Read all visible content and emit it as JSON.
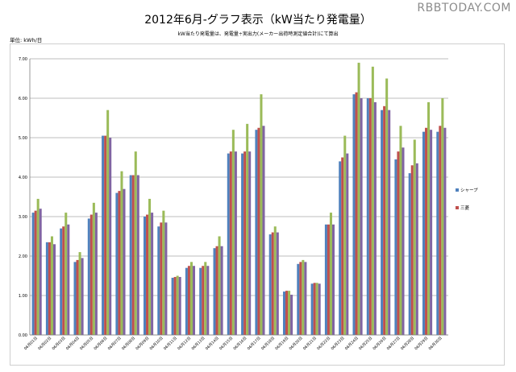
{
  "header": {
    "title": "2012年6月-グラフ表示（kW当たり発電量）",
    "subtitle": "kW当たり発電量は、発電量÷実出力(メーカー出荷時測定値合計)にて算出",
    "unit": "単位: kWh/日",
    "watermark": "RBBTODAY.COM"
  },
  "chart_data": {
    "type": "bar",
    "title": "2012年6月-グラフ表示（kW当たり発電量）",
    "ylim": [
      0,
      7
    ],
    "yticks": [
      "0.00",
      "1.00",
      "2.00",
      "3.00",
      "4.00",
      "5.00",
      "6.00",
      "7.00"
    ],
    "grid": true,
    "legend_position": "right",
    "categories": [
      "06月01日",
      "06月02日",
      "06月03日",
      "06月04日",
      "06月05日",
      "06月06日",
      "06月07日",
      "06月08日",
      "06月09日",
      "06月10日",
      "06月11日",
      "06月12日",
      "06月13日",
      "06月14日",
      "06月15日",
      "06月16日",
      "06月17日",
      "06月18日",
      "06月19日",
      "06月20日",
      "06月21日",
      "06月22日",
      "06月23日",
      "06月24日",
      "06月25日",
      "06月26日",
      "06月27日",
      "06月28日",
      "06月29日",
      "06月30日"
    ],
    "series": [
      {
        "name": "シャープ",
        "color": "#4f81bd",
        "values": [
          3.1,
          2.35,
          2.7,
          1.85,
          2.95,
          5.05,
          3.6,
          4.05,
          3.0,
          2.75,
          1.45,
          1.7,
          1.7,
          2.2,
          4.6,
          4.6,
          5.2,
          2.55,
          1.1,
          1.8,
          1.3,
          2.8,
          4.4,
          6.1,
          6.0,
          5.7,
          4.45,
          4.1,
          5.15,
          5.15
        ]
      },
      {
        "name": "三菱",
        "color": "#c0504d",
        "values": [
          3.15,
          2.35,
          2.75,
          1.9,
          3.05,
          5.05,
          3.65,
          4.05,
          3.05,
          2.85,
          1.47,
          1.75,
          1.75,
          2.25,
          4.65,
          4.65,
          5.25,
          2.6,
          1.12,
          1.85,
          1.32,
          2.8,
          4.5,
          6.15,
          6.0,
          5.8,
          4.65,
          4.3,
          5.25,
          5.3
        ]
      },
      {
        "name": "",
        "color": "#9bbb59",
        "values": [
          3.45,
          2.5,
          3.1,
          2.1,
          3.35,
          5.7,
          4.15,
          4.65,
          3.45,
          3.15,
          1.5,
          1.85,
          1.85,
          2.5,
          5.2,
          5.35,
          6.1,
          2.75,
          1.12,
          1.9,
          1.32,
          3.1,
          5.05,
          6.9,
          6.8,
          6.5,
          5.3,
          4.95,
          5.9,
          6.0
        ]
      },
      {
        "name": "",
        "color": "#8064a2",
        "values": [
          3.2,
          2.3,
          2.8,
          1.95,
          3.1,
          5.0,
          3.7,
          4.05,
          3.1,
          2.85,
          1.47,
          1.75,
          1.75,
          2.25,
          4.65,
          4.65,
          5.3,
          2.6,
          1.02,
          1.85,
          1.3,
          2.8,
          4.6,
          6.0,
          5.9,
          5.7,
          4.75,
          4.35,
          5.2,
          5.25
        ]
      }
    ]
  }
}
